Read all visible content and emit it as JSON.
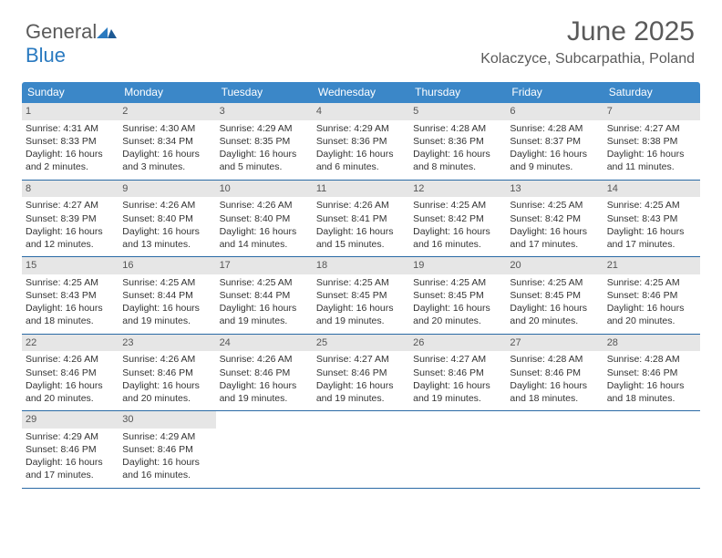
{
  "brand": {
    "part1": "General",
    "part2": "Blue"
  },
  "title": "June 2025",
  "location": "Kolaczyce, Subcarpathia, Poland",
  "colors": {
    "header_bg": "#3b87c8",
    "header_text": "#ffffff",
    "daynum_bg": "#e6e6e6",
    "week_border": "#2a6aa5",
    "title_color": "#5a5a5a",
    "brand_blue": "#2a7ac0",
    "body_text": "#333333"
  },
  "day_headers": [
    "Sunday",
    "Monday",
    "Tuesday",
    "Wednesday",
    "Thursday",
    "Friday",
    "Saturday"
  ],
  "weeks": [
    [
      {
        "n": "1",
        "sr": "4:31 AM",
        "ss": "8:33 PM",
        "dl": "16 hours and 2 minutes."
      },
      {
        "n": "2",
        "sr": "4:30 AM",
        "ss": "8:34 PM",
        "dl": "16 hours and 3 minutes."
      },
      {
        "n": "3",
        "sr": "4:29 AM",
        "ss": "8:35 PM",
        "dl": "16 hours and 5 minutes."
      },
      {
        "n": "4",
        "sr": "4:29 AM",
        "ss": "8:36 PM",
        "dl": "16 hours and 6 minutes."
      },
      {
        "n": "5",
        "sr": "4:28 AM",
        "ss": "8:36 PM",
        "dl": "16 hours and 8 minutes."
      },
      {
        "n": "6",
        "sr": "4:28 AM",
        "ss": "8:37 PM",
        "dl": "16 hours and 9 minutes."
      },
      {
        "n": "7",
        "sr": "4:27 AM",
        "ss": "8:38 PM",
        "dl": "16 hours and 11 minutes."
      }
    ],
    [
      {
        "n": "8",
        "sr": "4:27 AM",
        "ss": "8:39 PM",
        "dl": "16 hours and 12 minutes."
      },
      {
        "n": "9",
        "sr": "4:26 AM",
        "ss": "8:40 PM",
        "dl": "16 hours and 13 minutes."
      },
      {
        "n": "10",
        "sr": "4:26 AM",
        "ss": "8:40 PM",
        "dl": "16 hours and 14 minutes."
      },
      {
        "n": "11",
        "sr": "4:26 AM",
        "ss": "8:41 PM",
        "dl": "16 hours and 15 minutes."
      },
      {
        "n": "12",
        "sr": "4:25 AM",
        "ss": "8:42 PM",
        "dl": "16 hours and 16 minutes."
      },
      {
        "n": "13",
        "sr": "4:25 AM",
        "ss": "8:42 PM",
        "dl": "16 hours and 17 minutes."
      },
      {
        "n": "14",
        "sr": "4:25 AM",
        "ss": "8:43 PM",
        "dl": "16 hours and 17 minutes."
      }
    ],
    [
      {
        "n": "15",
        "sr": "4:25 AM",
        "ss": "8:43 PM",
        "dl": "16 hours and 18 minutes."
      },
      {
        "n": "16",
        "sr": "4:25 AM",
        "ss": "8:44 PM",
        "dl": "16 hours and 19 minutes."
      },
      {
        "n": "17",
        "sr": "4:25 AM",
        "ss": "8:44 PM",
        "dl": "16 hours and 19 minutes."
      },
      {
        "n": "18",
        "sr": "4:25 AM",
        "ss": "8:45 PM",
        "dl": "16 hours and 19 minutes."
      },
      {
        "n": "19",
        "sr": "4:25 AM",
        "ss": "8:45 PM",
        "dl": "16 hours and 20 minutes."
      },
      {
        "n": "20",
        "sr": "4:25 AM",
        "ss": "8:45 PM",
        "dl": "16 hours and 20 minutes."
      },
      {
        "n": "21",
        "sr": "4:25 AM",
        "ss": "8:46 PM",
        "dl": "16 hours and 20 minutes."
      }
    ],
    [
      {
        "n": "22",
        "sr": "4:26 AM",
        "ss": "8:46 PM",
        "dl": "16 hours and 20 minutes."
      },
      {
        "n": "23",
        "sr": "4:26 AM",
        "ss": "8:46 PM",
        "dl": "16 hours and 20 minutes."
      },
      {
        "n": "24",
        "sr": "4:26 AM",
        "ss": "8:46 PM",
        "dl": "16 hours and 19 minutes."
      },
      {
        "n": "25",
        "sr": "4:27 AM",
        "ss": "8:46 PM",
        "dl": "16 hours and 19 minutes."
      },
      {
        "n": "26",
        "sr": "4:27 AM",
        "ss": "8:46 PM",
        "dl": "16 hours and 19 minutes."
      },
      {
        "n": "27",
        "sr": "4:28 AM",
        "ss": "8:46 PM",
        "dl": "16 hours and 18 minutes."
      },
      {
        "n": "28",
        "sr": "4:28 AM",
        "ss": "8:46 PM",
        "dl": "16 hours and 18 minutes."
      }
    ],
    [
      {
        "n": "29",
        "sr": "4:29 AM",
        "ss": "8:46 PM",
        "dl": "16 hours and 17 minutes."
      },
      {
        "n": "30",
        "sr": "4:29 AM",
        "ss": "8:46 PM",
        "dl": "16 hours and 16 minutes."
      },
      null,
      null,
      null,
      null,
      null
    ]
  ],
  "labels": {
    "sunrise": "Sunrise:",
    "sunset": "Sunset:",
    "daylight": "Daylight:"
  }
}
